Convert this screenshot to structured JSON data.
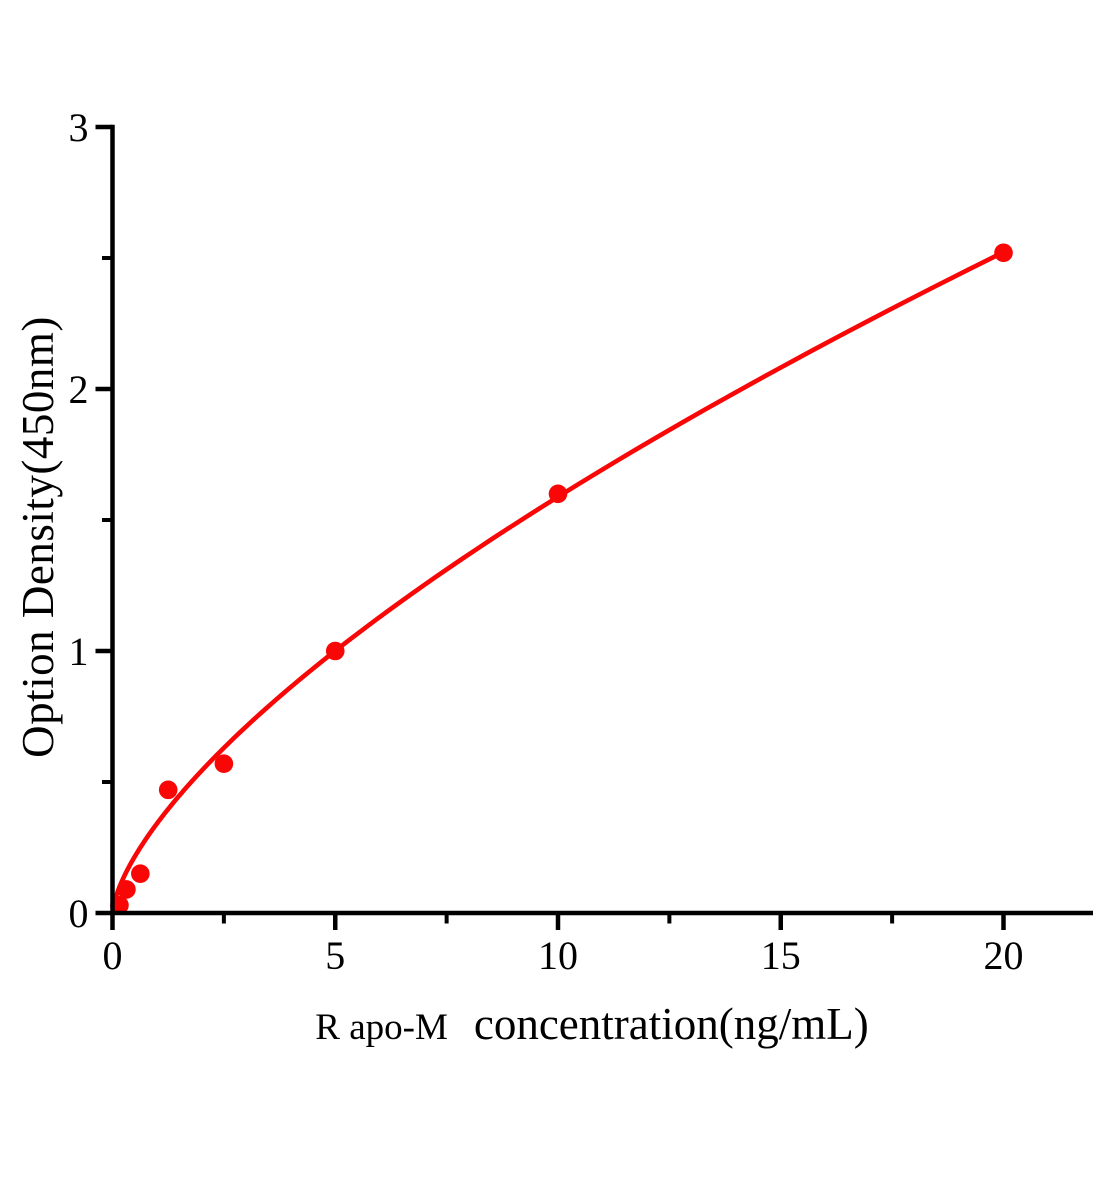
{
  "page": {
    "background": "#ffffff"
  },
  "chart_data": {
    "type": "scatter",
    "title": "",
    "xlabel": "R apo-M  concentration(ng/mL)",
    "xlabel_prefix": "R apo-M",
    "xlabel_main": "concentration(ng/mL)",
    "ylabel": "Option Density(450nm)",
    "x": [
      0.156,
      0.313,
      0.625,
      1.25,
      2.5,
      5,
      10,
      20
    ],
    "y": [
      0.03,
      0.09,
      0.15,
      0.47,
      0.57,
      1.0,
      1.6,
      2.52
    ],
    "xlim": [
      0,
      22
    ],
    "ylim": [
      0,
      3
    ],
    "x_major_ticks": [
      0,
      5,
      10,
      15,
      20
    ],
    "x_minor_ticks": [
      2.5,
      7.5,
      12.5,
      17.5
    ],
    "y_major_ticks": [
      0,
      1,
      2,
      3
    ],
    "y_minor_ticks": [
      0.5,
      1.5,
      2.5
    ],
    "grid": false,
    "legend": "none",
    "marker_color": "#f90606",
    "curve_color": "#f90606",
    "axis_color": "#000000",
    "tick_label_color": "#000000",
    "fit": {
      "type": "power",
      "a": 0.342,
      "b": 0.667
    }
  }
}
